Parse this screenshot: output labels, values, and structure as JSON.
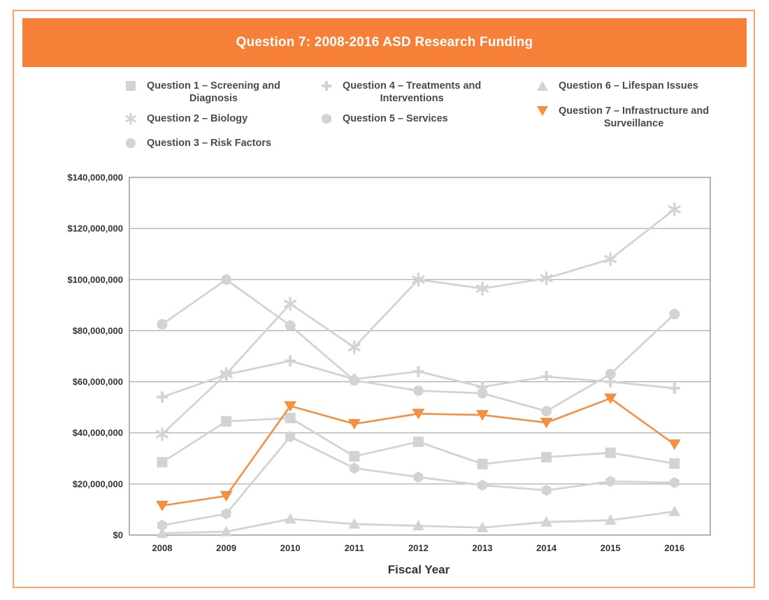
{
  "chart_data": {
    "type": "line",
    "title": "Question 7: 2008-2016 ASD Research Funding",
    "xlabel": "Fiscal Year",
    "ylabel": "",
    "categories": [
      "2008",
      "2009",
      "2010",
      "2011",
      "2012",
      "2013",
      "2014",
      "2015",
      "2016"
    ],
    "ylim": [
      0,
      140000000
    ],
    "yticks": [
      0,
      20000000,
      40000000,
      60000000,
      80000000,
      100000000,
      120000000,
      140000000
    ],
    "ytick_labels": [
      "$0",
      "$20,000,000",
      "$40,000,000",
      "$60,000,000",
      "$80,000,000",
      "$100,000,000",
      "$120,000,000",
      "$140,000,000"
    ],
    "grid": true,
    "legend_position": "top",
    "series": [
      {
        "name": "Question 1 – Screening and Diagnosis",
        "marker": "square",
        "color": "#d3d3d3",
        "values": [
          28500000,
          44500000,
          45800000,
          30800000,
          36500000,
          27800000,
          30500000,
          32200000,
          28000000
        ]
      },
      {
        "name": "Question 2 – Biology",
        "marker": "asterisk",
        "color": "#d3d3d3",
        "values": [
          39500000,
          63000000,
          90500000,
          73500000,
          100000000,
          96500000,
          100500000,
          108000000,
          127500000
        ]
      },
      {
        "name": "Question 3 – Risk Factors",
        "marker": "circle",
        "color": "#d3d3d3",
        "values": [
          82500000,
          100000000,
          82000000,
          60500000,
          56500000,
          55500000,
          48500000,
          63000000,
          86500000
        ]
      },
      {
        "name": "Question 4 – Treatments and Interventions",
        "marker": "plus",
        "color": "#d3d3d3",
        "values": [
          54000000,
          62800000,
          68200000,
          61000000,
          64000000,
          58000000,
          62000000,
          60000000,
          57500000
        ]
      },
      {
        "name": "Question 5 – Services",
        "marker": "hexagon",
        "color": "#d3d3d3",
        "values": [
          3800000,
          8300000,
          38500000,
          26200000,
          22700000,
          19500000,
          17500000,
          21000000,
          20500000
        ]
      },
      {
        "name": "Question 6 – Lifespan Issues",
        "marker": "triangle-up",
        "color": "#d3d3d3",
        "values": [
          700000,
          1300000,
          6300000,
          4300000,
          3600000,
          2900000,
          5100000,
          5800000,
          9200000
        ]
      },
      {
        "name": "Question 7 – Infrastructure and Surveillance",
        "marker": "triangle-down",
        "color": "#f39043",
        "values": [
          11500000,
          15300000,
          50500000,
          43500000,
          47500000,
          47000000,
          44000000,
          53500000,
          35500000
        ]
      }
    ]
  },
  "legend": [
    {
      "line1": "Question 1 – Screening and",
      "line2": "Diagnosis",
      "marker": "square",
      "color": "#d3d3d3"
    },
    {
      "line1": "Question 2 – Biology",
      "line2": "",
      "marker": "asterisk",
      "color": "#d3d3d3"
    },
    {
      "line1": "Question 3 – Risk Factors",
      "line2": "",
      "marker": "circle",
      "color": "#d3d3d3"
    },
    {
      "line1": "Question 4 – Treatments and",
      "line2": "Interventions",
      "marker": "plus",
      "color": "#d3d3d3"
    },
    {
      "line1": "Question 5 – Services",
      "line2": "",
      "marker": "hexagon",
      "color": "#d3d3d3"
    },
    {
      "line1": "Question 6 – Lifespan Issues",
      "line2": "",
      "marker": "triangle-up",
      "color": "#d3d3d3"
    },
    {
      "line1": "Question 7 – Infrastructure and",
      "line2": "Surveillance",
      "marker": "triangle-down",
      "color": "#f39043"
    }
  ],
  "colors": {
    "accent": "#f68038",
    "grey_series": "#d3d3d3",
    "highlight_series": "#f39043"
  }
}
